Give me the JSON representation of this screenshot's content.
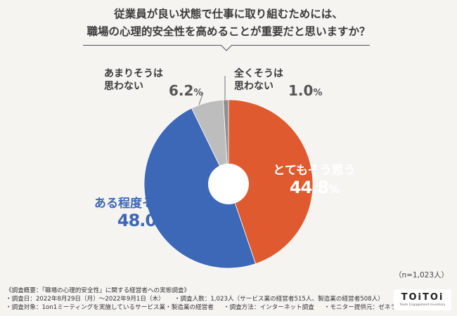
{
  "title": {
    "line1": "従業員が良い状態で仕事に取り組むためには、",
    "line2": "職場の心理的安全性を高めることが重要だと思いますか？"
  },
  "chart_data": {
    "type": "pie",
    "donut": true,
    "start": "top",
    "direction": "clockwise",
    "slices": [
      {
        "label": "とてもそう思う",
        "value": 44.8,
        "color": "#df5a2f"
      },
      {
        "label": "ある程度そう思う",
        "value": 48.0,
        "color": "#3d68b7"
      },
      {
        "label": "あまりそうは思わない",
        "value": 6.2,
        "color": "#bdbdbd"
      },
      {
        "label": "全くそうは思わない",
        "value": 1.0,
        "color": "#8f8f8f"
      }
    ]
  },
  "labels": {
    "strongly_agree": {
      "cat": "とてもそう思う",
      "val": "44.8",
      "pct": "%"
    },
    "somewhat_agree": {
      "cat": "ある程度そう思う",
      "val": "48.0",
      "pct": "%"
    },
    "somewhat_disagree": {
      "line1": "あまりそうは",
      "line2": "思わない",
      "val": "6.2",
      "pct": "%"
    },
    "strongly_disagree": {
      "line1": "全くそうは",
      "line2": "思わない",
      "val": "1.0",
      "pct": "%"
    }
  },
  "sample_size": "（n=1,023人）",
  "footer": {
    "overview": "《調査概要：「職場の心理的安全性」に関する経営者への実態調査》",
    "period": "・調査日：2022年8月29日（月）〜2022年9月1日（木）",
    "respondents": "・調査人数：1,023人（サービス業の経営者515人、製造業の経営者508人）",
    "target": "・調査対象：1on1ミーティングを実施しているサービス業・製造業の経営者",
    "method": "・調査方法：インターネット調査",
    "provider": "・モニター提供元：ゼネラルリサーチ"
  },
  "logo": {
    "brand": "TOiTOi",
    "tagline": "Team Engagement Inventory"
  }
}
